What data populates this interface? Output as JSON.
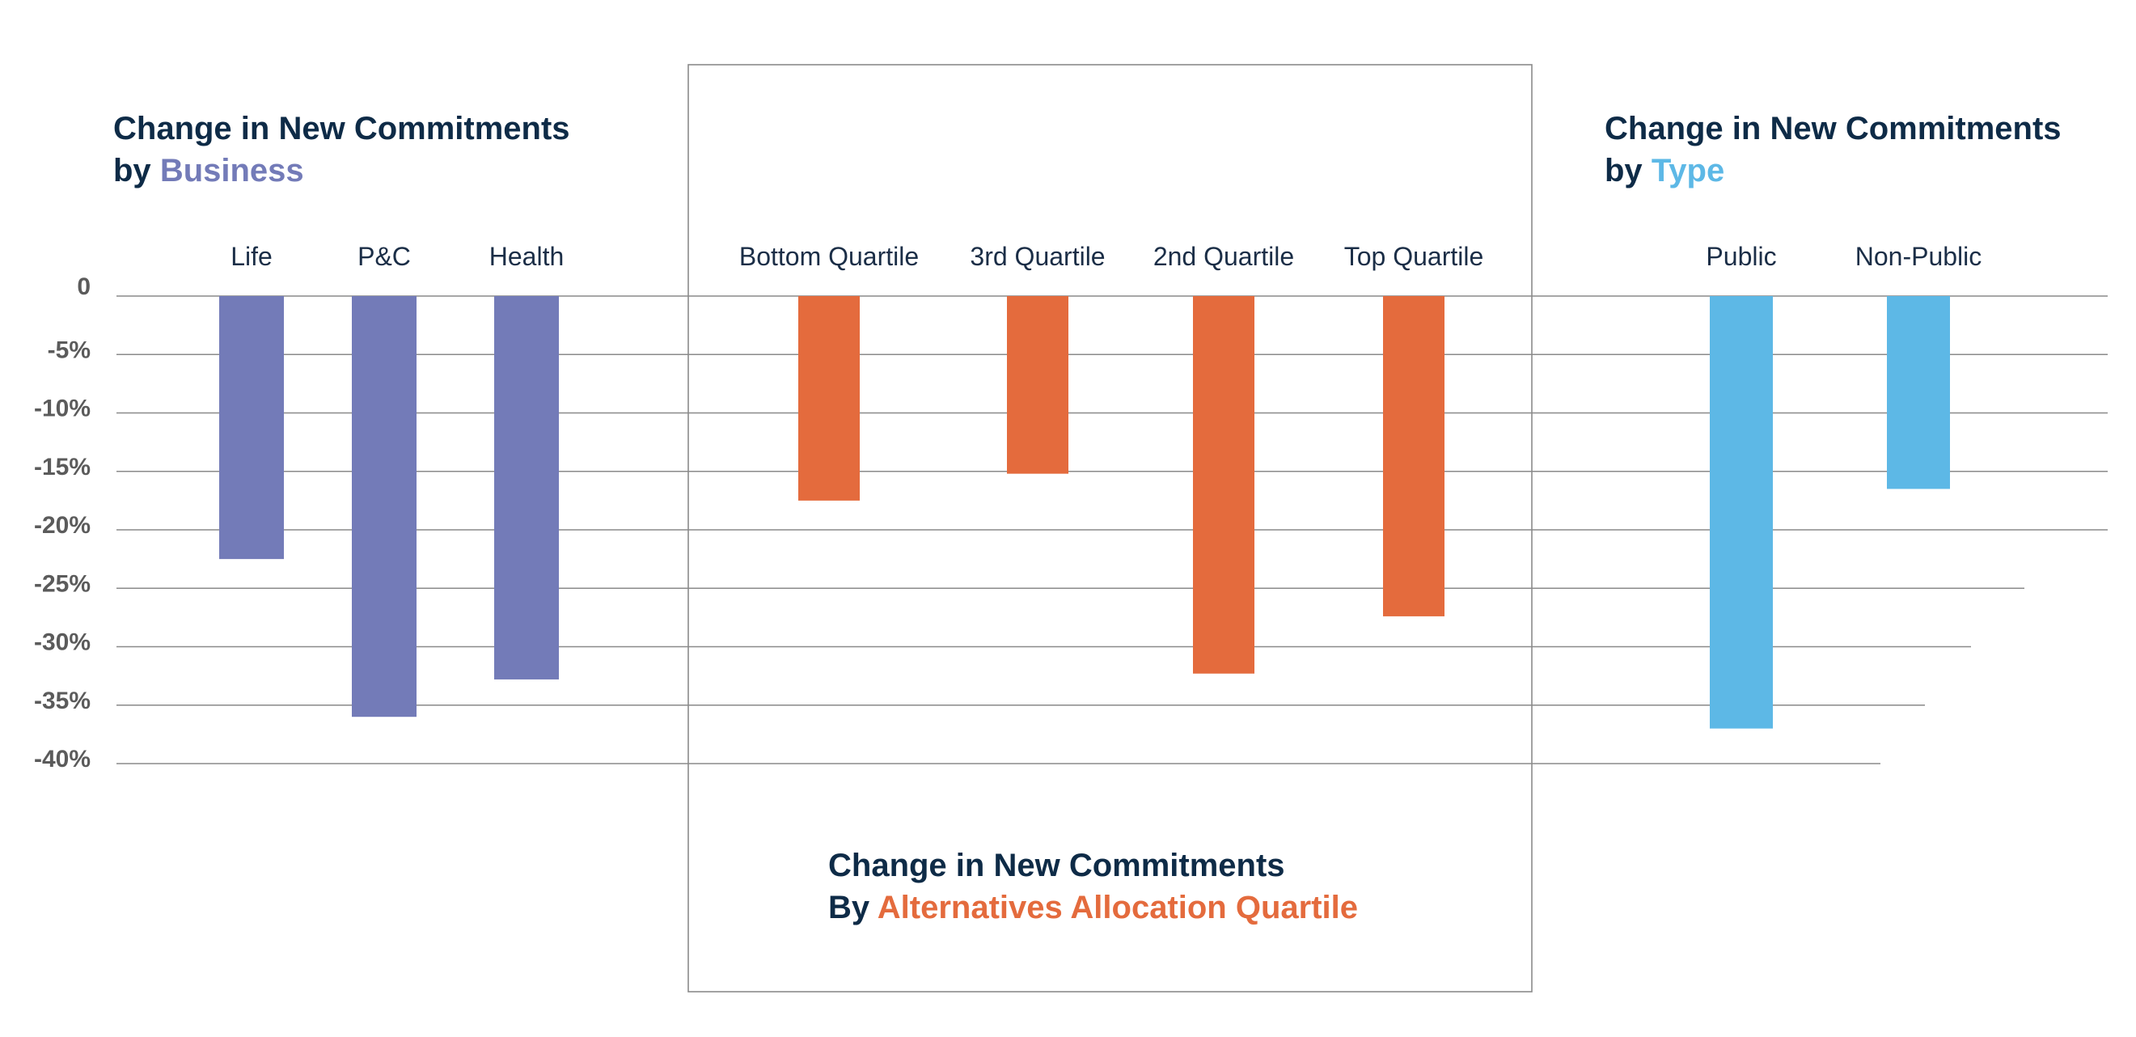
{
  "chart_data": [
    {
      "type": "bar",
      "title": "Change in New Commitments",
      "subtitle_prefix": "by",
      "subtitle_highlight": "Business",
      "categories": [
        "Life",
        "P&C",
        "Health"
      ],
      "values": [
        -22.5,
        -36.0,
        -32.8
      ],
      "color": "#737bb8"
    },
    {
      "type": "bar",
      "title": "Change in New Commitments",
      "subtitle_prefix": "By",
      "subtitle_highlight": "Alternatives Allocation Quartile",
      "categories": [
        "Bottom Quartile",
        "3rd Quartile",
        "2nd Quartile",
        "Top Quartile"
      ],
      "values": [
        -17.5,
        -15.2,
        -32.3,
        -27.4
      ],
      "color": "#e46b3d"
    },
    {
      "type": "bar",
      "title": "Change in New Commitments",
      "subtitle_prefix": "by",
      "subtitle_highlight": "Type",
      "categories": [
        "Public",
        "Non-Public"
      ],
      "values": [
        -37.0,
        -16.5
      ],
      "color": "#5db8e6"
    }
  ],
  "y_axis": {
    "ylim": [
      -40,
      0
    ],
    "ticks": [
      0,
      -5,
      -10,
      -15,
      -20,
      -25,
      -30,
      -35,
      -40
    ],
    "tick_labels": [
      "0",
      "-5%",
      "-10%",
      "-15%",
      "-20%",
      "-25%",
      "-30%",
      "-35%",
      "-40%"
    ]
  },
  "colors": {
    "title_text": "#0e2b47",
    "grid": "#8a8a8a"
  }
}
